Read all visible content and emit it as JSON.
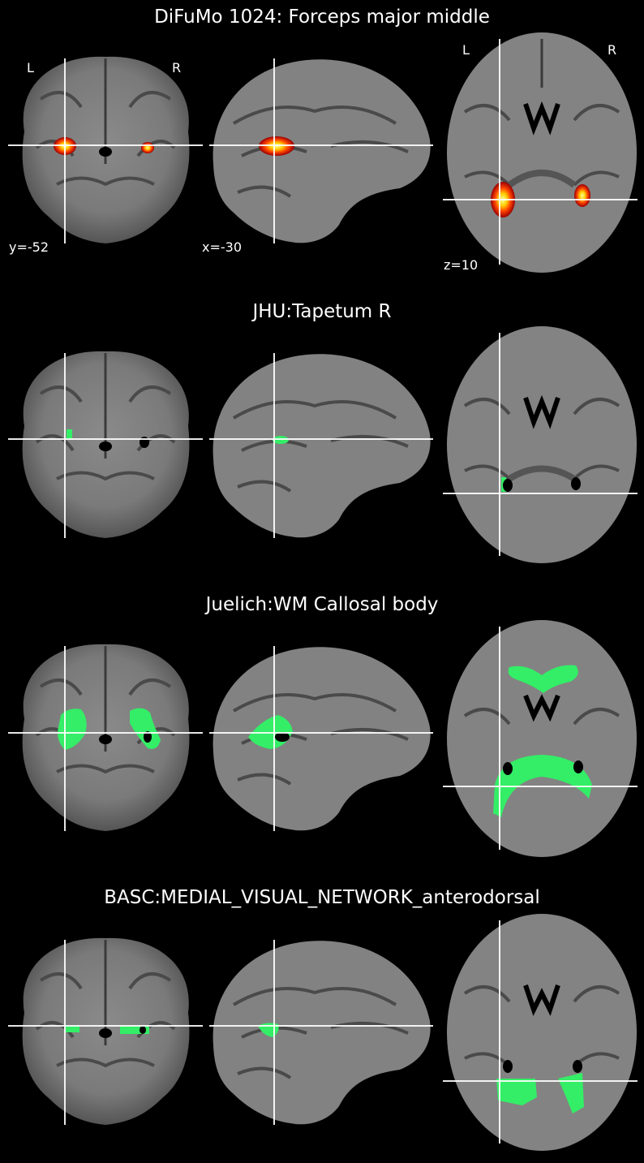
{
  "rows": [
    {
      "title": "DiFuMo 1024: Forceps major middle",
      "overlay": "heat"
    },
    {
      "title": "JHU:Tapetum R",
      "overlay": "green-small"
    },
    {
      "title": "Juelich:WM Callosal body",
      "overlay": "green-callosal"
    },
    {
      "title": "BASC:MEDIAL_VISUAL_NETWORK_anterodorsal",
      "overlay": "green-visual"
    }
  ],
  "orientation": {
    "left": "L",
    "right": "R"
  },
  "coords": {
    "coronal": "y=-52",
    "sagittal": "x=-30",
    "axial": "z=10"
  },
  "colors": {
    "background": "#000000",
    "heat_core": "#ffff66",
    "heat_mid": "#ff6600",
    "heat_edge": "#aa0000",
    "green_overlay": "#33ee66"
  }
}
